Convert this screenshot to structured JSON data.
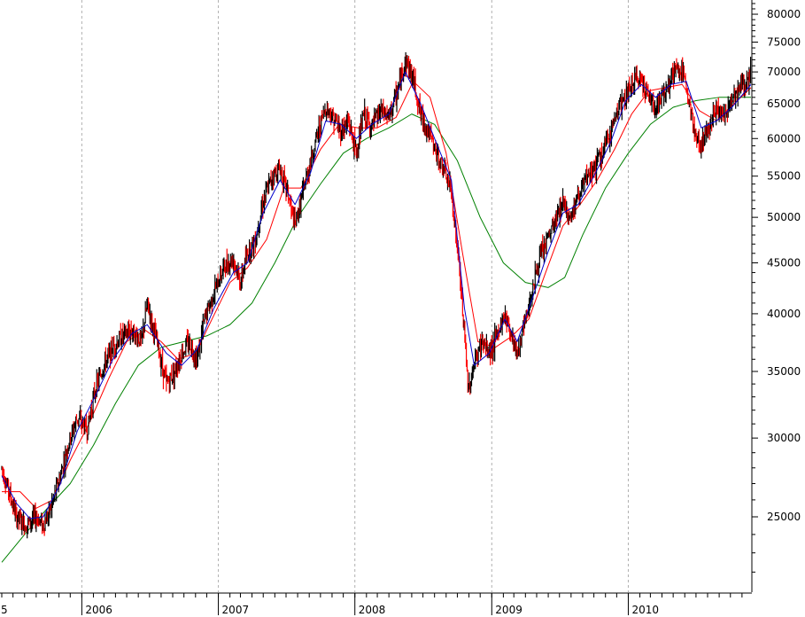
{
  "chart_data": {
    "type": "line",
    "title": "",
    "xlabel": "",
    "ylabel": "",
    "y_scale": "log",
    "ylim": [
      21000,
      82000
    ],
    "xlim": [
      "2005-06-01",
      "2010-11-25"
    ],
    "grid": "vertical-dashed",
    "y_ticks": [
      25000,
      30000,
      35000,
      40000,
      45000,
      50000,
      55000,
      60000,
      65000,
      70000,
      75000,
      80000
    ],
    "y_tick_labels": [
      "25000",
      "30000",
      "35000",
      "40000",
      "45000",
      "50000",
      "55000",
      "60000",
      "65000",
      "70000",
      "75000",
      "80000"
    ],
    "x_ticks": [
      {
        "date": "2005-06-01",
        "label": "5"
      },
      {
        "date": "2006-01-01",
        "label": "2006"
      },
      {
        "date": "2007-01-01",
        "label": "2007"
      },
      {
        "date": "2008-01-01",
        "label": "2008"
      },
      {
        "date": "2009-01-01",
        "label": "2009"
      },
      {
        "date": "2010-01-01",
        "label": "2010"
      }
    ],
    "colors": {
      "price_up": "#000000",
      "price_down": "#ff0000",
      "ma_short": "#0000cc",
      "ma_medium": "#ff0000",
      "ma_long": "#008000"
    },
    "price": {
      "x": [
        "2005-06-01",
        "2005-06-20",
        "2005-07-10",
        "2005-08-05",
        "2005-09-01",
        "2005-09-20",
        "2005-10-10",
        "2005-11-05",
        "2005-11-25",
        "2005-12-20",
        "2006-01-15",
        "2006-02-05",
        "2006-03-01",
        "2006-03-25",
        "2006-04-20",
        "2006-05-15",
        "2006-06-10",
        "2006-06-25",
        "2006-07-20",
        "2006-08-15",
        "2006-09-05",
        "2006-09-25",
        "2006-10-15",
        "2006-11-05",
        "2006-11-25",
        "2006-12-20",
        "2007-01-15",
        "2007-02-10",
        "2007-03-01",
        "2007-03-20",
        "2007-04-10",
        "2007-05-01",
        "2007-05-25",
        "2007-06-15",
        "2007-07-05",
        "2007-07-25",
        "2007-08-15",
        "2007-09-05",
        "2007-09-25",
        "2007-10-15",
        "2007-11-05",
        "2007-11-25",
        "2007-12-15",
        "2008-01-05",
        "2008-01-25",
        "2008-02-15",
        "2008-03-10",
        "2008-04-01",
        "2008-04-25",
        "2008-05-15",
        "2008-06-05",
        "2008-06-25",
        "2008-07-15",
        "2008-08-05",
        "2008-08-25",
        "2008-09-15",
        "2008-10-05",
        "2008-10-20",
        "2008-10-30",
        "2008-11-15",
        "2008-12-05",
        "2008-12-25",
        "2009-01-15",
        "2009-02-05",
        "2009-02-25",
        "2009-03-10",
        "2009-03-30",
        "2009-04-20",
        "2009-05-10",
        "2009-05-30",
        "2009-06-20",
        "2009-07-10",
        "2009-07-30",
        "2009-08-20",
        "2009-09-10",
        "2009-10-01",
        "2009-10-25",
        "2009-11-15",
        "2009-12-05",
        "2009-12-25",
        "2010-01-15",
        "2010-02-05",
        "2010-02-25",
        "2010-03-15",
        "2010-04-05",
        "2010-04-25",
        "2010-05-15",
        "2010-06-05",
        "2010-06-25",
        "2010-07-15",
        "2010-08-05",
        "2010-08-25",
        "2010-09-15",
        "2010-10-05",
        "2010-10-25",
        "2010-11-15",
        "2010-11-25"
      ],
      "values": [
        28000,
        26500,
        25000,
        24500,
        25000,
        24500,
        25500,
        27500,
        29500,
        31500,
        30500,
        33500,
        35500,
        37000,
        38000,
        38500,
        37500,
        41000,
        37500,
        34000,
        35000,
        36500,
        37500,
        36000,
        39500,
        42000,
        44500,
        45500,
        43000,
        46000,
        47500,
        52000,
        55000,
        56000,
        53000,
        49000,
        53000,
        57000,
        61000,
        64500,
        63000,
        61000,
        62500,
        58000,
        63500,
        61500,
        64000,
        63000,
        67000,
        72000,
        69000,
        63500,
        61000,
        58000,
        56000,
        53000,
        45000,
        38000,
        33500,
        35500,
        37500,
        36500,
        38000,
        40000,
        38000,
        36500,
        39000,
        42500,
        45500,
        47500,
        49500,
        52000,
        50000,
        52500,
        54500,
        56000,
        58000,
        61000,
        64500,
        66000,
        68500,
        69000,
        66000,
        64500,
        66500,
        69000,
        70500,
        68500,
        61000,
        59000,
        62000,
        64500,
        63000,
        66000,
        67500,
        68000,
        70000
      ]
    },
    "series": [
      {
        "key": "ma_short",
        "x": [
          "2005-06-01",
          "2005-07-10",
          "2005-08-15",
          "2005-09-20",
          "2005-11-05",
          "2005-12-20",
          "2006-02-05",
          "2006-03-25",
          "2006-05-15",
          "2006-06-25",
          "2006-08-15",
          "2006-09-25",
          "2006-11-05",
          "2006-12-20",
          "2007-02-10",
          "2007-03-20",
          "2007-05-01",
          "2007-06-15",
          "2007-07-25",
          "2007-09-05",
          "2007-10-15",
          "2007-11-25",
          "2008-01-05",
          "2008-02-15",
          "2008-04-01",
          "2008-05-15",
          "2008-06-25",
          "2008-08-05",
          "2008-09-15",
          "2008-10-20",
          "2008-11-15",
          "2008-12-25",
          "2009-02-05",
          "2009-03-10",
          "2009-04-20",
          "2009-05-30",
          "2009-07-10",
          "2009-08-20",
          "2009-10-01",
          "2009-11-15",
          "2009-12-25",
          "2010-02-05",
          "2010-03-15",
          "2010-04-25",
          "2010-06-05",
          "2010-07-15",
          "2010-08-25",
          "2010-10-05",
          "2010-11-25"
        ],
        "values": [
          27500,
          25800,
          24900,
          25000,
          27000,
          30500,
          33000,
          36000,
          38200,
          39000,
          36500,
          35500,
          36800,
          40500,
          44000,
          45000,
          50500,
          54500,
          51500,
          55500,
          62500,
          62000,
          60000,
          62000,
          63500,
          70000,
          65000,
          59500,
          54500,
          40500,
          35500,
          36500,
          39500,
          37500,
          41500,
          46000,
          50500,
          51500,
          55000,
          59500,
          65500,
          68000,
          66000,
          68000,
          68500,
          61500,
          62500,
          64500,
          68000
        ]
      },
      {
        "key": "ma_medium",
        "x": [
          "2005-06-01",
          "2005-07-20",
          "2005-09-01",
          "2005-10-15",
          "2005-12-01",
          "2006-01-20",
          "2006-03-15",
          "2006-05-01",
          "2006-06-20",
          "2006-08-01",
          "2006-09-15",
          "2006-11-01",
          "2006-12-15",
          "2007-02-01",
          "2007-03-20",
          "2007-05-10",
          "2007-06-25",
          "2007-08-10",
          "2007-10-01",
          "2007-11-20",
          "2008-01-10",
          "2008-03-01",
          "2008-04-20",
          "2008-06-05",
          "2008-07-20",
          "2008-09-01",
          "2008-10-15",
          "2008-11-25",
          "2009-01-10",
          "2009-02-25",
          "2009-04-10",
          "2009-05-25",
          "2009-07-10",
          "2009-08-25",
          "2009-10-10",
          "2009-11-25",
          "2010-01-10",
          "2010-02-25",
          "2010-04-10",
          "2010-05-25",
          "2010-07-10",
          "2010-08-25",
          "2010-10-10",
          "2010-11-25"
        ],
        "values": [
          26500,
          26500,
          25500,
          26000,
          28500,
          31000,
          34500,
          37500,
          38500,
          37500,
          36000,
          36500,
          39500,
          43000,
          44500,
          47500,
          53500,
          53500,
          58500,
          62000,
          61500,
          61500,
          63000,
          68500,
          66000,
          58000,
          46000,
          37500,
          37000,
          38000,
          39500,
          44000,
          49000,
          51500,
          54500,
          58500,
          63500,
          67000,
          67500,
          68000,
          64000,
          62500,
          65000,
          67500
        ]
      },
      {
        "key": "ma_long",
        "x": [
          "2005-06-01",
          "2005-08-01",
          "2005-10-01",
          "2005-12-01",
          "2006-02-01",
          "2006-04-01",
          "2006-06-01",
          "2006-08-01",
          "2006-10-01",
          "2006-12-01",
          "2007-02-01",
          "2007-04-01",
          "2007-06-01",
          "2007-08-01",
          "2007-10-01",
          "2007-12-01",
          "2008-02-01",
          "2008-04-01",
          "2008-06-01",
          "2008-08-01",
          "2008-10-01",
          "2008-12-01",
          "2009-02-01",
          "2009-04-01",
          "2009-06-01",
          "2009-07-15",
          "2009-09-01",
          "2009-11-01",
          "2010-01-01",
          "2010-03-01",
          "2010-05-01",
          "2010-07-01",
          "2010-09-01",
          "2010-11-25"
        ],
        "values": [
          22500,
          24000,
          25500,
          27000,
          29500,
          32500,
          35500,
          37000,
          37500,
          38000,
          39000,
          41000,
          45000,
          50000,
          54000,
          58000,
          60000,
          61500,
          63500,
          62000,
          57000,
          50000,
          45000,
          43000,
          42500,
          43500,
          48000,
          53500,
          58000,
          62000,
          64500,
          65500,
          66000,
          66000
        ]
      }
    ]
  }
}
